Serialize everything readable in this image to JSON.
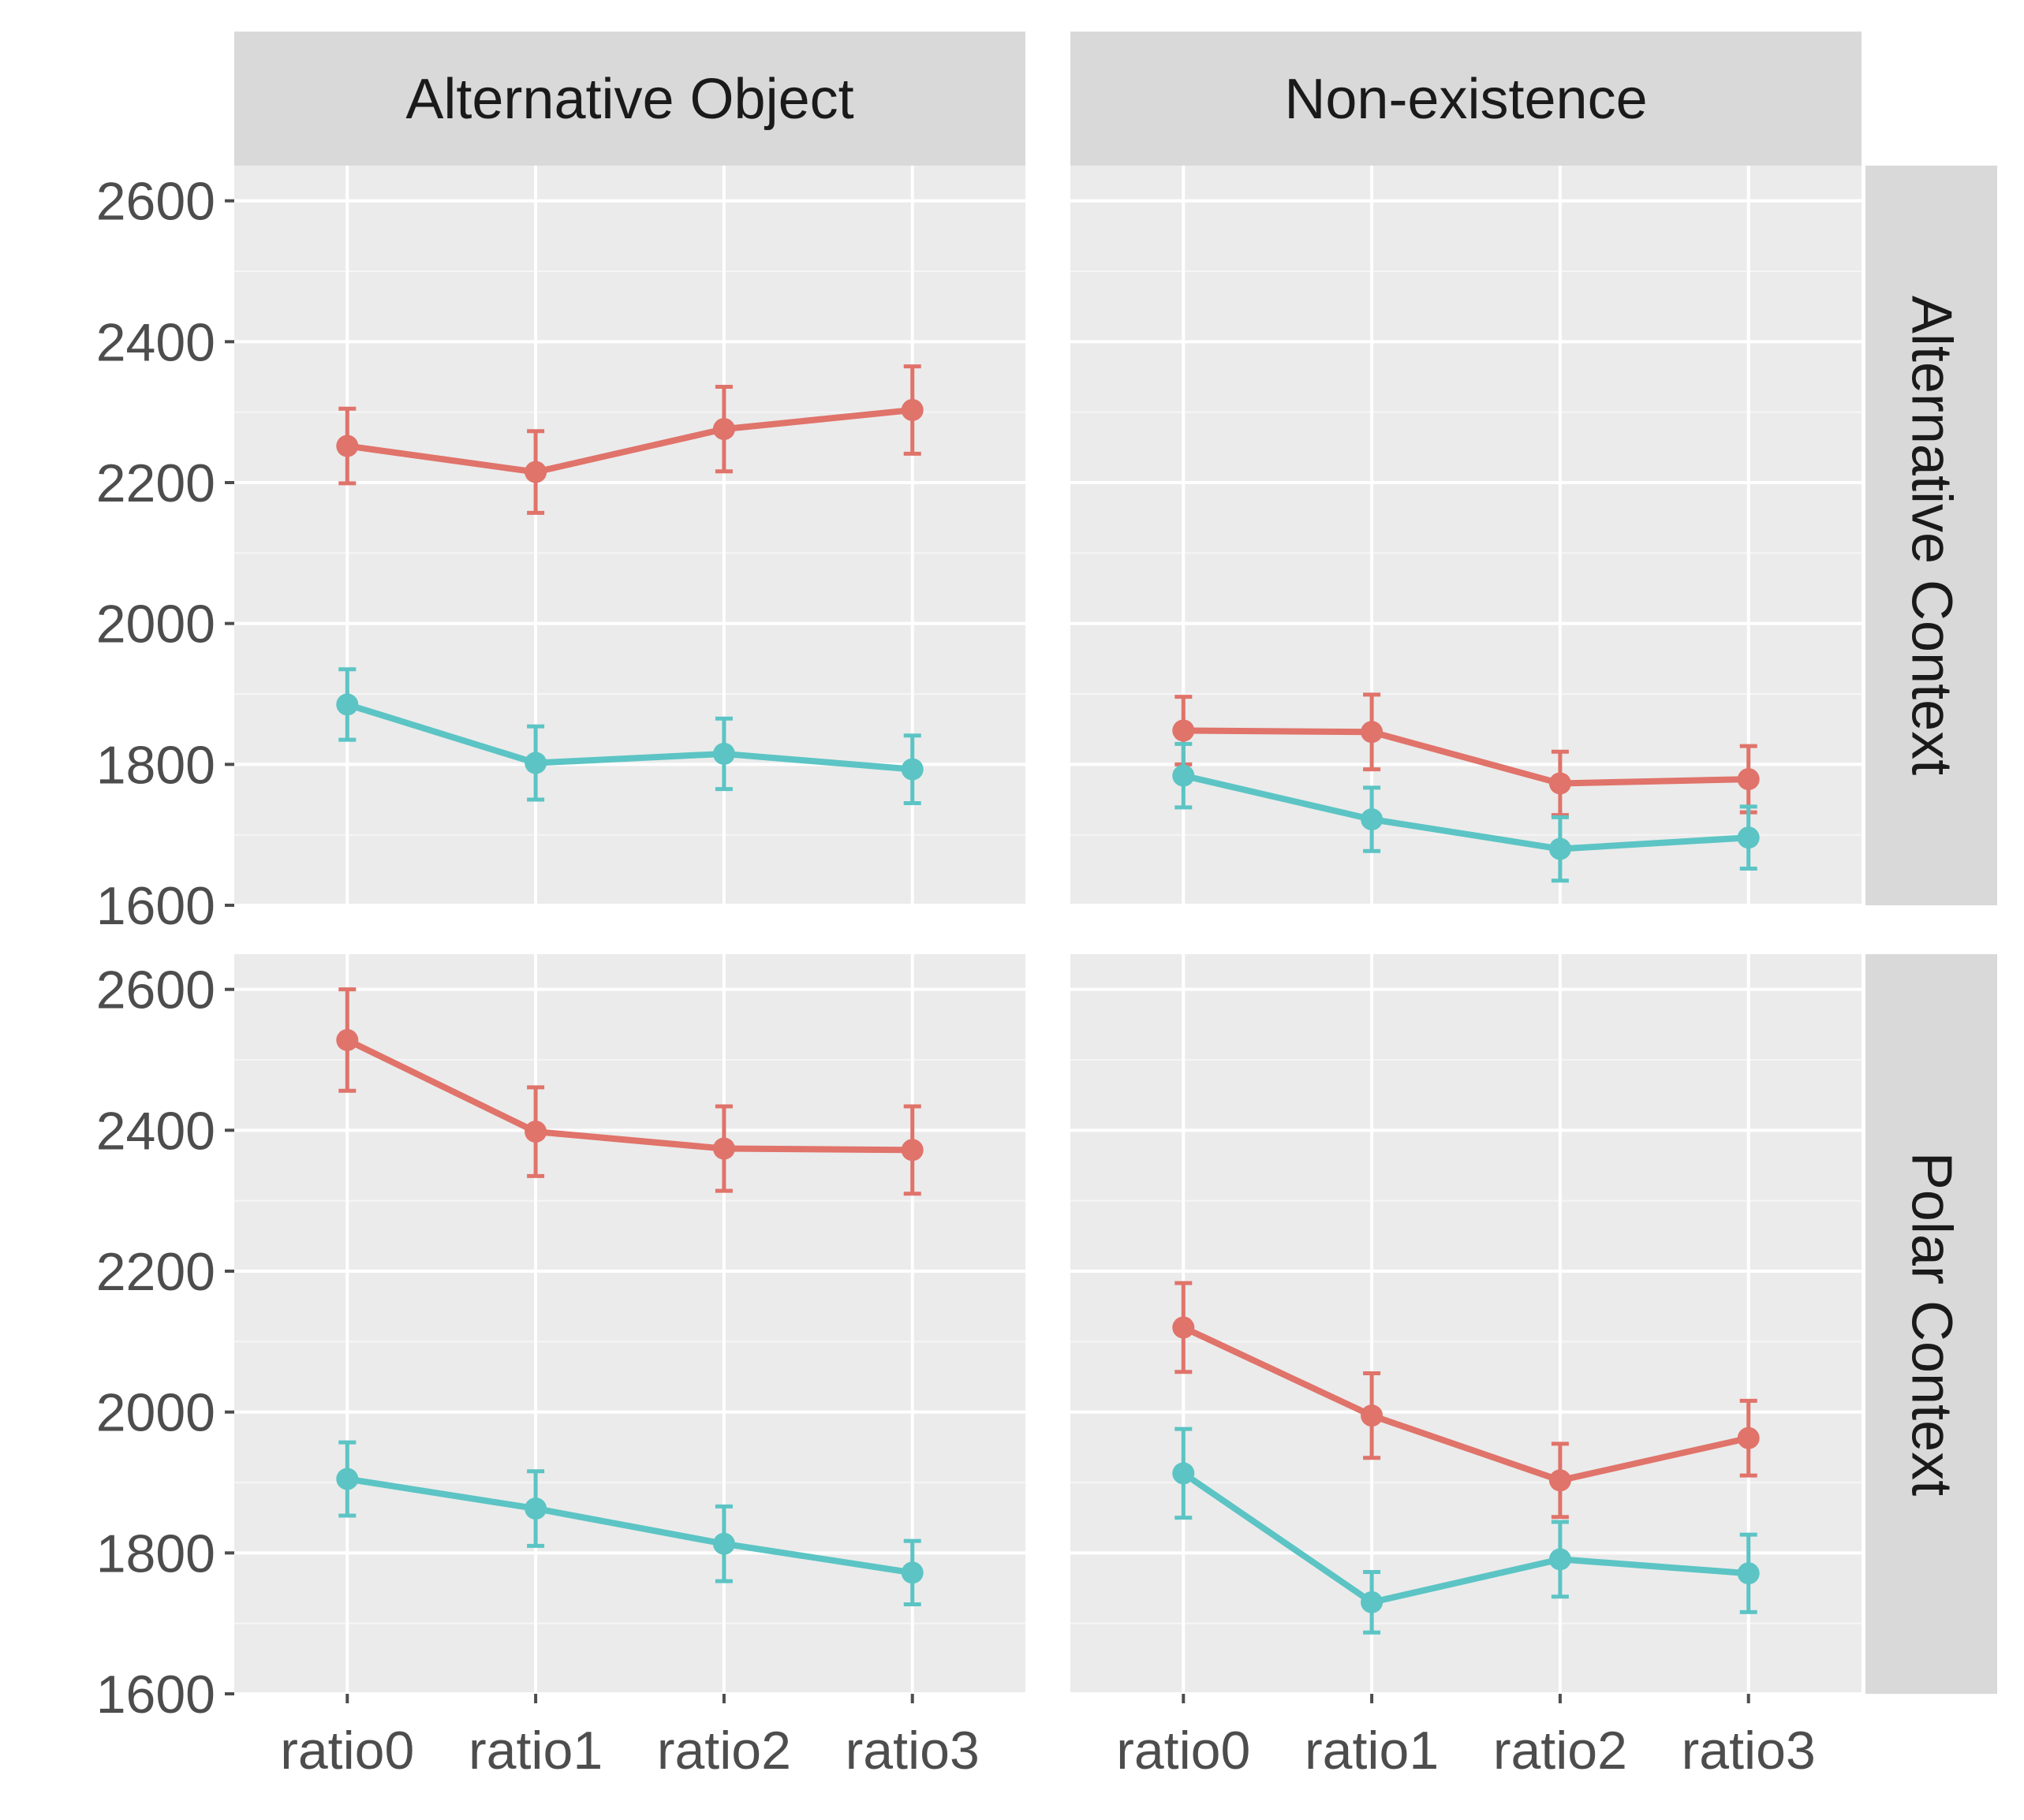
{
  "chart_data": {
    "type": "line",
    "categories": [
      "ratio0",
      "ratio1",
      "ratio2",
      "ratio3"
    ],
    "y_ticks": [
      "1600",
      "1800",
      "2000",
      "2200",
      "2400",
      "2600"
    ],
    "ylim": [
      1600,
      2650
    ],
    "grid": true,
    "column_labels": [
      "Alternative Object",
      "Non-existence"
    ],
    "row_labels": [
      "Alternative Context",
      "Polar Context"
    ],
    "series_colors": [
      "#e0736a",
      "#5cc4c4"
    ],
    "panels": [
      {
        "column": "Alternative Object",
        "row": "Alternative Context",
        "series": [
          {
            "values": [
              2252,
              2215,
              2276,
              2303
            ],
            "error": [
              53,
              58,
              60,
              62
            ]
          },
          {
            "values": [
              1885,
              1802,
              1815,
              1793
            ],
            "error": [
              50,
              52,
              50,
              48
            ]
          }
        ]
      },
      {
        "column": "Non-existence",
        "row": "Alternative Context",
        "series": [
          {
            "values": [
              1848,
              1846,
              1773,
              1779
            ],
            "error": [
              48,
              53,
              45,
              47
            ]
          },
          {
            "values": [
              1784,
              1722,
              1680,
              1696
            ],
            "error": [
              45,
              45,
              45,
              44
            ]
          }
        ]
      },
      {
        "column": "Alternative Object",
        "row": "Polar Context",
        "series": [
          {
            "values": [
              2528,
              2398,
              2374,
              2372
            ],
            "error": [
              72,
              63,
              60,
              62
            ]
          },
          {
            "values": [
              1905,
              1863,
              1813,
              1772
            ],
            "error": [
              52,
              53,
              53,
              45
            ]
          }
        ]
      },
      {
        "column": "Non-existence",
        "row": "Polar Context",
        "series": [
          {
            "values": [
              2120,
              1995,
              1903,
              1963
            ],
            "error": [
              63,
              60,
              52,
              53
            ]
          },
          {
            "values": [
              1913,
              1730,
              1791,
              1771
            ],
            "error": [
              63,
              43,
              53,
              55
            ]
          }
        ]
      }
    ]
  }
}
